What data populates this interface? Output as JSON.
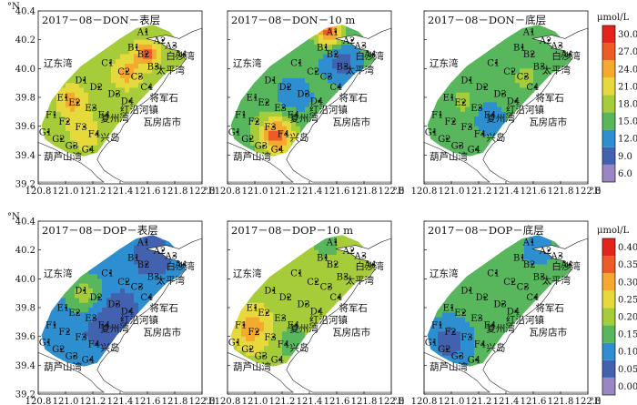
{
  "units": {
    "don": "μmol/L",
    "dop": "μmol/L"
  },
  "axes": {
    "lat_unit": "°N",
    "lon_unit": "°E",
    "lat_ticks": [
      "39.2",
      "39.4",
      "39.6",
      "39.8",
      "40.0",
      "40.2",
      "40.4"
    ],
    "lon_ticks": [
      "120.8",
      "121.0",
      "121.2",
      "121.4",
      "121.6",
      "121.8",
      "122.0"
    ]
  },
  "colorbars": [
    {
      "ticks": [
        "6.0",
        "9.0",
        "12.0",
        "15.0",
        "18.0",
        "21.0",
        "24.0",
        "27.0",
        "30.0"
      ]
    },
    {
      "ticks": [
        "0.00",
        "0.05",
        "0.10",
        "0.15",
        "0.20",
        "0.25",
        "0.30",
        "0.35",
        "0.40"
      ]
    }
  ],
  "colors": {
    "band": [
      "#9a86c2",
      "#4262b0",
      "#2e8fd0",
      "#58b65c",
      "#a6cc3a",
      "#e5d93c",
      "#f5a92f",
      "#ee5b27",
      "#e2241b"
    ]
  },
  "places": {
    "liaodong": "辽东湾",
    "huludao": "葫芦山湾",
    "baisha": "白沙湾",
    "taiping": "太平湾",
    "jiangjun": "将军石",
    "hongyan": "红沿河镇",
    "wafang": "瓦房店市",
    "fuzhou": "复州湾",
    "xingdao": "兴岛"
  },
  "stations": [
    "A1",
    "A2",
    "A3",
    "A4",
    "B1",
    "B2",
    "B3",
    "C1",
    "C2",
    "C3",
    "C4",
    "D1",
    "D2",
    "D3",
    "D4",
    "E1",
    "E2",
    "E3",
    "E4",
    "F1",
    "F2",
    "F3",
    "F4",
    "G1",
    "G2",
    "G3",
    "G4"
  ],
  "panels": [
    {
      "title": "2017－08－DON－表层"
    },
    {
      "title": "2017－08－DON－10 m"
    },
    {
      "title": "2017－08－DON－底层"
    },
    {
      "title": "2017－08－DOP－表层"
    },
    {
      "title": "2017－08－DOP－10 m"
    },
    {
      "title": "2017－08－DOP－底层"
    }
  ],
  "chart_data": {
    "type": "heatmap",
    "x_label": "°E",
    "y_label": "°N",
    "xlim": [
      120.8,
      122.0
    ],
    "ylim": [
      39.2,
      40.4
    ],
    "series": [
      {
        "panel": "2017－08－DON－表层",
        "parameter": "DON",
        "range": [
          6.0,
          30.0
        ],
        "dominant": [
          18.0,
          24.0
        ],
        "hotspots": [
          "B2",
          "C2",
          "D1",
          "E1"
        ]
      },
      {
        "panel": "2017－08－DON－10 m",
        "parameter": "DON",
        "range": [
          6.0,
          30.0
        ],
        "dominant": [
          12.0,
          21.0
        ],
        "hotspots": [
          "A1",
          "B1",
          "F3",
          "G3"
        ]
      },
      {
        "panel": "2017－08－DON－底层",
        "parameter": "DON",
        "range": [
          6.0,
          30.0
        ],
        "dominant": [
          15.0,
          21.0
        ],
        "hotspots": [
          "E2",
          "C3"
        ]
      },
      {
        "panel": "2017－08－DOP－表层",
        "parameter": "DOP",
        "range": [
          0.0,
          0.4
        ],
        "dominant": [
          0.1,
          0.2
        ],
        "hotspots": [
          "D1",
          "E1"
        ]
      },
      {
        "panel": "2017－08－DOP－10 m",
        "parameter": "DOP",
        "range": [
          0.0,
          0.4
        ],
        "dominant": [
          0.15,
          0.25
        ],
        "hotspots": [
          "E1",
          "F1",
          "G1"
        ]
      },
      {
        "panel": "2017－08－DOP－底层",
        "parameter": "DOP",
        "range": [
          0.0,
          0.4
        ],
        "dominant": [
          0.05,
          0.2
        ],
        "hotspots": [
          "F2",
          "G2"
        ]
      }
    ]
  }
}
